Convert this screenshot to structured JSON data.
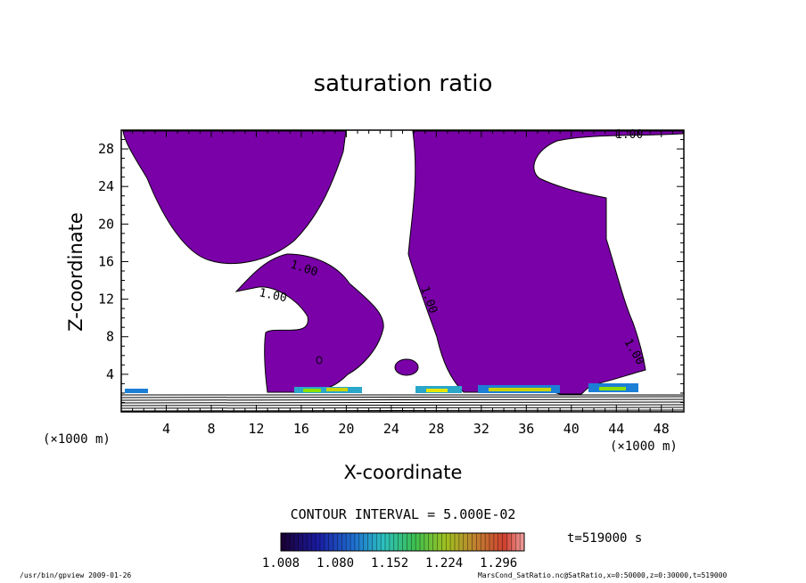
{
  "chart_data": {
    "type": "contour",
    "title": "saturation ratio",
    "xlabel": "X-coordinate",
    "ylabel": "Z-coordinate",
    "x_unit": "(×1000 m)",
    "y_unit": "(×1000 m)",
    "xlim": [
      0,
      50
    ],
    "ylim": [
      0,
      30
    ],
    "x_ticks": [
      "4",
      "8",
      "12",
      "16",
      "20",
      "24",
      "28",
      "32",
      "36",
      "40",
      "44",
      "48"
    ],
    "y_ticks": [
      "4",
      "8",
      "12",
      "16",
      "20",
      "24",
      "28"
    ],
    "contour_labels": [
      "1.00",
      "1.00",
      "1.00",
      "1.00",
      "1.00"
    ],
    "contour_interval_text": "CONTOUR INTERVAL = 5.000E-02",
    "time_text": "t=519000 s",
    "colorbar_ticks": [
      "1.008",
      "1.080",
      "1.152",
      "1.224",
      "1.296"
    ],
    "colorbar_range": [
      1.008,
      1.33
    ],
    "fill_color": "#7a00a8"
  },
  "footer": {
    "left": "/usr/bin/gpview  2009-01-26",
    "right": "MarsCond_SatRatio.nc@SatRatio,x=0:50000,z=0:30000,t=519000"
  }
}
